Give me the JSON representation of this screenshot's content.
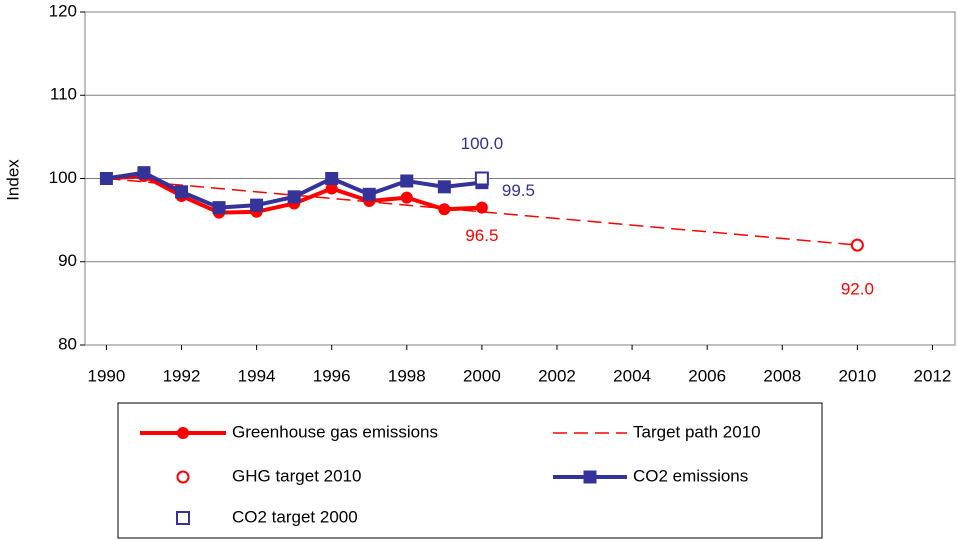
{
  "chart_data": {
    "type": "line",
    "y_label": "Index",
    "xlim": [
      1989.43,
      2012.6
    ],
    "xticks": [
      1990,
      1992,
      1994,
      1996,
      1998,
      2000,
      2002,
      2004,
      2006,
      2008,
      2010,
      2012
    ],
    "ylim": [
      80,
      120
    ],
    "yticks": [
      80,
      90,
      100,
      110,
      120
    ],
    "grid": true,
    "series": [
      {
        "name": "Greenhouse gas emissions",
        "color": "#ff0000",
        "marker": "circle",
        "line": "solid",
        "x": [
          1990,
          1991,
          1992,
          1993,
          1994,
          1995,
          1996,
          1997,
          1998,
          1999,
          2000
        ],
        "values": [
          100,
          100.3,
          97.9,
          95.9,
          96.0,
          97.0,
          98.8,
          97.3,
          97.7,
          96.3,
          96.5
        ],
        "value_labels": [
          null,
          null,
          null,
          null,
          null,
          null,
          null,
          null,
          null,
          null,
          "96.5"
        ]
      },
      {
        "name": "Target path 2010",
        "color": "#ff0000",
        "marker": "none",
        "line": "dashed",
        "x": [
          1990,
          2010
        ],
        "values": [
          100,
          92
        ]
      },
      {
        "name": "GHG target 2010",
        "color": "#ff0000",
        "marker": "open-circle",
        "line": "none",
        "x": [
          2010
        ],
        "values": [
          92.0
        ],
        "value_labels": [
          "92.0"
        ]
      },
      {
        "name": "CO2 emissions",
        "color": "#333399",
        "marker": "square",
        "line": "solid",
        "x": [
          1990,
          1991,
          1992,
          1993,
          1994,
          1995,
          1996,
          1997,
          1998,
          1999,
          2000
        ],
        "values": [
          100,
          100.7,
          98.4,
          96.5,
          96.8,
          97.8,
          100.0,
          98.1,
          99.7,
          99.0,
          99.5
        ],
        "value_labels": [
          null,
          null,
          null,
          null,
          null,
          null,
          null,
          null,
          null,
          null,
          "99.5"
        ]
      },
      {
        "name": "CO2 target 2000",
        "color": "#333399",
        "marker": "open-square",
        "line": "none",
        "x": [
          2000
        ],
        "values": [
          100.0
        ],
        "value_labels": [
          "100.0"
        ]
      }
    ]
  }
}
